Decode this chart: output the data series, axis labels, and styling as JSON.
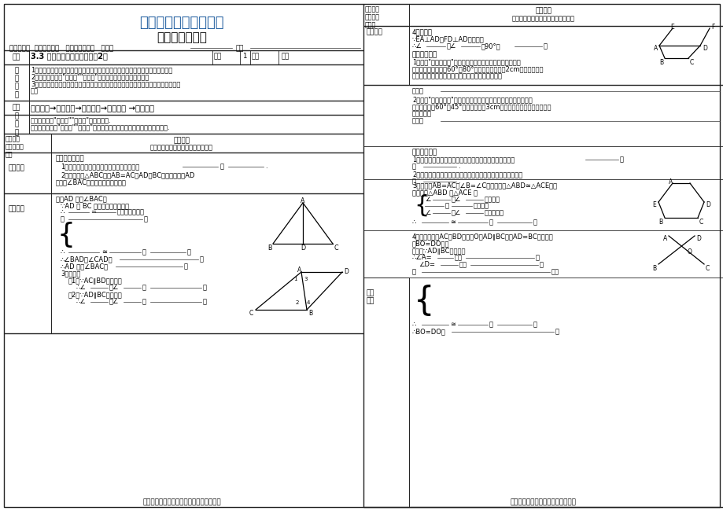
{
  "title1": "精编北师大版数学资料",
  "title2": "强湾中学导学案",
  "title1_color": "#1E5C9E",
  "bg_color": "#FFFFFF",
  "footer_left": "掌握一个解题方法，比做一百道题更重要。",
  "footer_right": "学习不怕根基浅，只要迈步总不迟。",
  "mid": 462
}
